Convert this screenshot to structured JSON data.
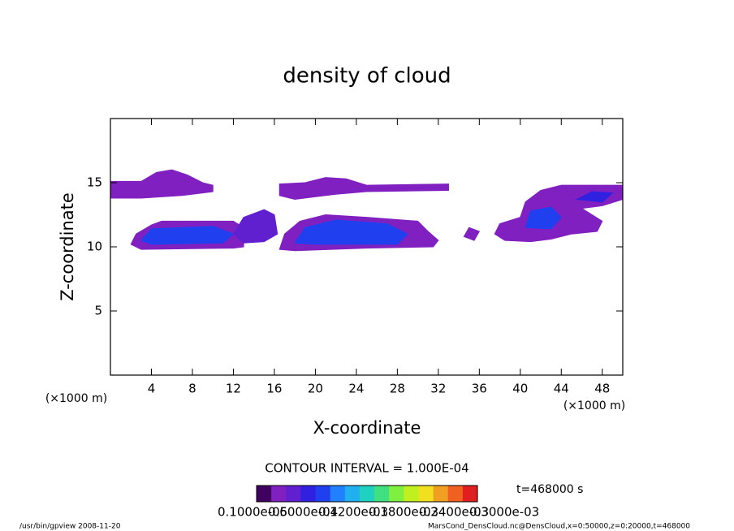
{
  "chart_data": {
    "type": "contour",
    "title": "density of cloud",
    "xlabel": "X-coordinate",
    "ylabel": "Z-coordinate",
    "xunit": "(×1000 m)",
    "xunit_right": "(×1000 m)",
    "contour_interval": "CONTOUR INTERVAL = 1.000E-04",
    "time_label": "t=468000 s",
    "footer_left": "/usr/bin/gpview   2008-11-20",
    "footer_right": "MarsCond_DensCloud.nc@DensCloud,x=0:50000,z=0:20000,t=468000",
    "xlim": [
      0,
      50
    ],
    "ylim": [
      0,
      20
    ],
    "xticks": [
      4,
      8,
      12,
      16,
      20,
      24,
      28,
      32,
      36,
      40,
      44,
      48
    ],
    "yticks": [
      5,
      10,
      15
    ],
    "colorbar": {
      "lim": [
        1e-06,
        0.0003
      ],
      "colors": [
        "#400060",
        "#8020c0",
        "#6020d0",
        "#3020e0",
        "#2040f0",
        "#2080ff",
        "#20b0f0",
        "#20d0c0",
        "#40e080",
        "#80f040",
        "#c0f020",
        "#f0e020",
        "#f0a020",
        "#f06020",
        "#e02020"
      ],
      "ticks": [
        {
          "value": 1e-06,
          "label": "0.1000e-05"
        },
        {
          "value": 6e-05,
          "label": "0.6000e-04"
        },
        {
          "value": 0.00012,
          "label": "0.1200e-03"
        },
        {
          "value": 0.00018,
          "label": "0.1800e-03"
        },
        {
          "value": 0.00024,
          "label": "0.2400e-03"
        },
        {
          "value": 0.0003,
          "label": "0.3000e-03"
        }
      ]
    },
    "regions": [
      {
        "value": 3e-05,
        "x": [
          0,
          0,
          3,
          4.5,
          6,
          7.5,
          9,
          10,
          10,
          7,
          3,
          0
        ],
        "z": [
          13.8,
          15.1,
          15.1,
          15.8,
          16,
          15.6,
          15,
          14.8,
          14.3,
          14,
          13.8,
          13.8
        ]
      },
      {
        "value": 3e-05,
        "x": [
          2,
          2.5,
          4,
          5,
          12,
          13,
          13,
          12,
          3
        ],
        "z": [
          10.2,
          11,
          11.7,
          12,
          12,
          11.5,
          10,
          9.9,
          9.8
        ]
      },
      {
        "value": 9e-05,
        "x": [
          3,
          4,
          10,
          12,
          11,
          4
        ],
        "z": [
          10.5,
          11.4,
          11.6,
          11,
          10.3,
          10.2
        ]
      },
      {
        "value": 6e-05,
        "x": [
          12,
          13,
          15,
          16,
          16.3,
          15,
          13
        ],
        "z": [
          11,
          12.3,
          12.9,
          12.5,
          11,
          10.4,
          10.3
        ]
      },
      {
        "value": 3e-05,
        "x": [
          16.5,
          17,
          18.5,
          21,
          25,
          30,
          31,
          32,
          31.5,
          25,
          18
        ],
        "z": [
          9.8,
          11,
          12,
          12.5,
          12.3,
          12,
          11.2,
          10.5,
          10,
          9.9,
          9.7
        ]
      },
      {
        "value": 0.0001,
        "x": [
          18,
          19,
          22,
          27,
          29,
          28,
          20
        ],
        "z": [
          10.3,
          11.5,
          12.1,
          11.8,
          11,
          10.2,
          10.2
        ]
      },
      {
        "value": 3e-05,
        "x": [
          16.5,
          16.5,
          19,
          21,
          23,
          25,
          33,
          33,
          25,
          22,
          18
        ],
        "z": [
          14,
          14.9,
          15,
          15.4,
          15.3,
          14.8,
          14.9,
          14.4,
          14.3,
          14.1,
          13.7
        ]
      },
      {
        "value": 3e-05,
        "x": [
          34.5,
          35,
          36,
          35.5
        ],
        "z": [
          10.8,
          11.5,
          11.2,
          10.5
        ]
      },
      {
        "value": 3e-05,
        "x": [
          37.5,
          38,
          40,
          40.5,
          42,
          44,
          47,
          50,
          50,
          48,
          46,
          48,
          47.5,
          45,
          43,
          41,
          38.5
        ],
        "z": [
          11,
          11.8,
          12.3,
          13.5,
          14.4,
          14.8,
          14.8,
          14.8,
          13.7,
          13.2,
          13,
          12,
          11.2,
          11,
          10.6,
          10.4,
          10.5
        ]
      },
      {
        "value": 9e-05,
        "x": [
          40.5,
          41,
          43,
          44,
          43
        ],
        "z": [
          11.5,
          12.8,
          13.1,
          12.3,
          11.4
        ]
      },
      {
        "value": 7e-05,
        "x": [
          45.5,
          47,
          49,
          48
        ],
        "z": [
          13.7,
          14.3,
          14.2,
          13.5
        ]
      }
    ]
  }
}
